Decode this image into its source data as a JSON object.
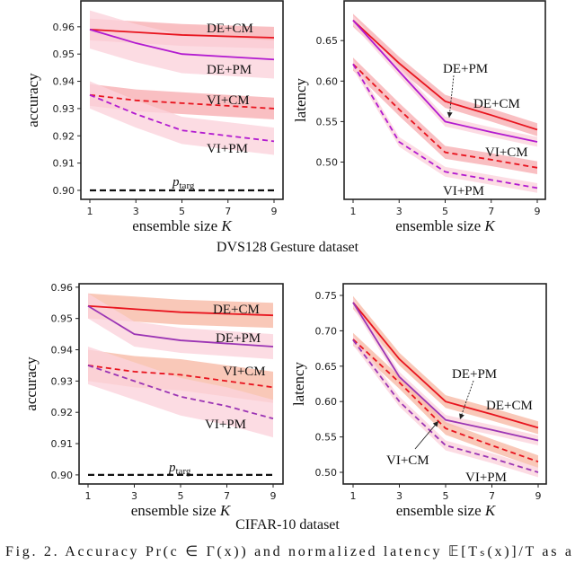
{
  "colors": {
    "CM": "#e8141e",
    "PM": "#b21ad0",
    "PM_bottom": "#9b34b4",
    "CM_band": "#f7a9ad",
    "CM_band_bottom": "#f7b6a0",
    "PM_band": "#fbd3dc",
    "ptarg": "#111111"
  },
  "captions": {
    "top": "DVS128 Gesture dataset",
    "bottom": "CIFAR-10 dataset",
    "figure": "Fig. 2.  Accuracy Pr(c ∈ Γ(x)) and normalized latency 𝔼[Tₛ(x)]/T as a"
  },
  "chart_data": [
    {
      "type": "line",
      "dataset": "DVS128 Gesture dataset",
      "xlabel": "ensemble size K",
      "ylabel": "accuracy",
      "x": [
        1,
        3,
        5,
        7,
        9
      ],
      "xticks": [
        "1",
        "3",
        "5",
        "7",
        "9"
      ],
      "yticks": [
        "0.90",
        "0.91",
        "0.92",
        "0.93",
        "0.94",
        "0.95",
        "0.96"
      ],
      "ylim": [
        0.8967,
        0.9695
      ],
      "grid": false,
      "ptarg": {
        "label": "p_targ",
        "value": 0.9
      },
      "series": [
        {
          "name": "DE+CM",
          "method": "CM",
          "dashed": false,
          "values": [
            0.959,
            0.958,
            0.957,
            0.9565,
            0.956
          ],
          "band": 0.004
        },
        {
          "name": "DE+PM",
          "method": "PM",
          "dashed": false,
          "values": [
            0.959,
            0.954,
            0.95,
            0.949,
            0.948
          ],
          "band": 0.007
        },
        {
          "name": "VI+CM",
          "method": "CM",
          "dashed": true,
          "values": [
            0.935,
            0.933,
            0.932,
            0.931,
            0.93
          ],
          "band": 0.004
        },
        {
          "name": "VI+PM",
          "method": "PM",
          "dashed": true,
          "values": [
            0.935,
            0.928,
            0.922,
            0.92,
            0.918
          ],
          "band": 0.005
        }
      ]
    },
    {
      "type": "line",
      "dataset": "DVS128 Gesture dataset",
      "xlabel": "ensemble size K",
      "ylabel": "latency",
      "x": [
        1,
        3,
        5,
        7,
        9
      ],
      "xticks": [
        "1",
        "3",
        "5",
        "7",
        "9"
      ],
      "yticks": [
        "0.50",
        "0.55",
        "0.60",
        "0.65"
      ],
      "ylim": [
        0.454,
        0.699
      ],
      "grid": false,
      "series": [
        {
          "name": "DE+CM",
          "method": "CM",
          "dashed": false,
          "values": [
            0.675,
            0.622,
            0.575,
            0.558,
            0.54
          ],
          "band": 0.008
        },
        {
          "name": "DE+PM",
          "method": "PM",
          "dashed": false,
          "values": [
            0.675,
            0.612,
            0.55,
            0.537,
            0.525
          ],
          "band": 0.006
        },
        {
          "name": "VI+CM",
          "method": "CM",
          "dashed": true,
          "values": [
            0.621,
            0.565,
            0.512,
            0.503,
            0.493
          ],
          "band": 0.008
        },
        {
          "name": "VI+PM",
          "method": "PM",
          "dashed": true,
          "values": [
            0.621,
            0.525,
            0.488,
            0.478,
            0.468
          ],
          "band": 0.006
        }
      ]
    },
    {
      "type": "line",
      "dataset": "CIFAR-10 dataset",
      "xlabel": "ensemble size K",
      "ylabel": "accuracy",
      "x": [
        1,
        3,
        5,
        7,
        9
      ],
      "xticks": [
        "1",
        "3",
        "5",
        "7",
        "9"
      ],
      "yticks": [
        "0.90",
        "0.91",
        "0.92",
        "0.93",
        "0.94",
        "0.95",
        "0.96"
      ],
      "ylim": [
        0.8971,
        0.9611
      ],
      "grid": false,
      "ptarg": {
        "label": "p_targ",
        "value": 0.9
      },
      "series": [
        {
          "name": "DE+CM",
          "method": "CM",
          "dashed": false,
          "values": [
            0.954,
            0.953,
            0.952,
            0.9515,
            0.951
          ],
          "band": 0.004
        },
        {
          "name": "DE+PM",
          "method": "PM",
          "dashed": false,
          "values": [
            0.954,
            0.945,
            0.943,
            0.942,
            0.941
          ],
          "band": 0.004
        },
        {
          "name": "VI+CM",
          "method": "CM",
          "dashed": true,
          "values": [
            0.935,
            0.933,
            0.932,
            0.93,
            0.928
          ],
          "band": 0.005
        },
        {
          "name": "VI+PM",
          "method": "PM",
          "dashed": true,
          "values": [
            0.935,
            0.93,
            0.925,
            0.922,
            0.918
          ],
          "band": 0.006
        }
      ]
    },
    {
      "type": "line",
      "dataset": "CIFAR-10 dataset",
      "xlabel": "ensemble size K",
      "ylabel": "latency",
      "x": [
        1,
        3,
        5,
        7,
        9
      ],
      "xticks": [
        "1",
        "3",
        "5",
        "7",
        "9"
      ],
      "yticks": [
        "0.50",
        "0.55",
        "0.60",
        "0.65",
        "0.70",
        "0.75"
      ],
      "ylim": [
        0.4835,
        0.7665
      ],
      "grid": false,
      "series": [
        {
          "name": "DE+CM",
          "method": "CM",
          "dashed": false,
          "values": [
            0.74,
            0.66,
            0.6,
            0.582,
            0.563
          ],
          "band": 0.009
        },
        {
          "name": "DE+PM",
          "method": "PM",
          "dashed": false,
          "values": [
            0.74,
            0.635,
            0.574,
            0.56,
            0.545
          ],
          "band": 0.007
        },
        {
          "name": "VI+CM",
          "method": "CM",
          "dashed": true,
          "values": [
            0.688,
            0.627,
            0.562,
            0.538,
            0.515
          ],
          "band": 0.009
        },
        {
          "name": "VI+PM",
          "method": "PM",
          "dashed": true,
          "values": [
            0.687,
            0.6,
            0.538,
            0.52,
            0.5
          ],
          "band": 0.007
        }
      ]
    }
  ]
}
